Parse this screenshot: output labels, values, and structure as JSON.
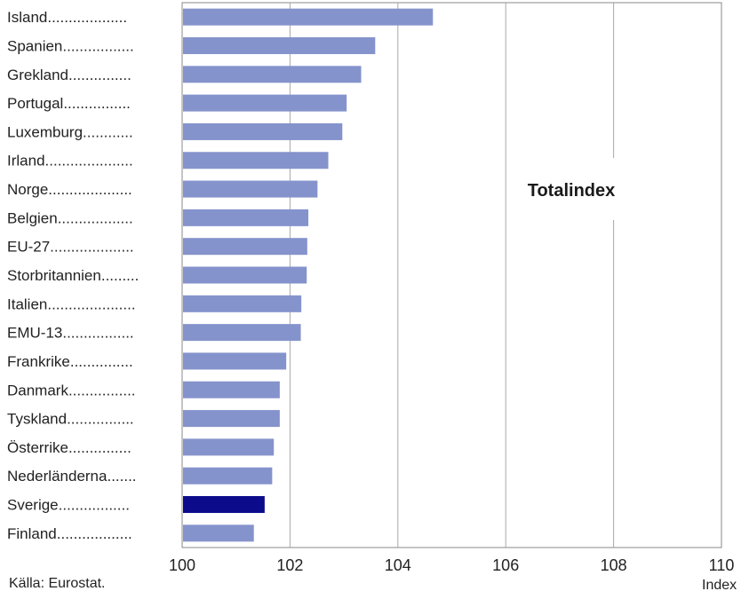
{
  "chart_data": {
    "type": "bar",
    "orientation": "horizontal",
    "title": "Totalindex",
    "categories": [
      "Island",
      "Spanien",
      "Grekland",
      "Portugal",
      "Luxemburg",
      "Irland",
      "Norge",
      "Belgien",
      "EU-27",
      "Storbritannien",
      "Italien",
      "EMU-13",
      "Frankrike",
      "Danmark",
      "Tyskland",
      "Österrike",
      "Nederländerna",
      "Sverige",
      "Finland"
    ],
    "category_labels": [
      "Island...................",
      "Spanien.................",
      "Grekland...............",
      "Portugal................",
      "Luxemburg............",
      "Irland.....................",
      "Norge....................",
      "Belgien..................",
      "EU-27....................",
      "Storbritannien.........",
      "Italien.....................",
      "EMU-13.................",
      "Frankrike...............",
      "Danmark................",
      "Tyskland................",
      "Österrike...............",
      "Nederländerna.......",
      "Sverige.................",
      "Finland.................."
    ],
    "values": [
      104.65,
      103.58,
      103.32,
      103.05,
      102.97,
      102.71,
      102.51,
      102.34,
      102.32,
      102.31,
      102.21,
      102.2,
      101.93,
      101.81,
      101.81,
      101.7,
      101.67,
      101.53,
      101.33
    ],
    "highlight": "Sverige",
    "colors": {
      "bar": "#8593cc",
      "highlight": "#0b0b8c",
      "grid": "#a8a8a8",
      "axis": "#888888"
    },
    "x_ticks": [
      "100",
      "102",
      "104",
      "106",
      "108",
      "110"
    ],
    "xlim": [
      100,
      110
    ],
    "xlabel": "Index",
    "grid": true,
    "legend": "none"
  },
  "source_note": "Källa: Eurostat."
}
